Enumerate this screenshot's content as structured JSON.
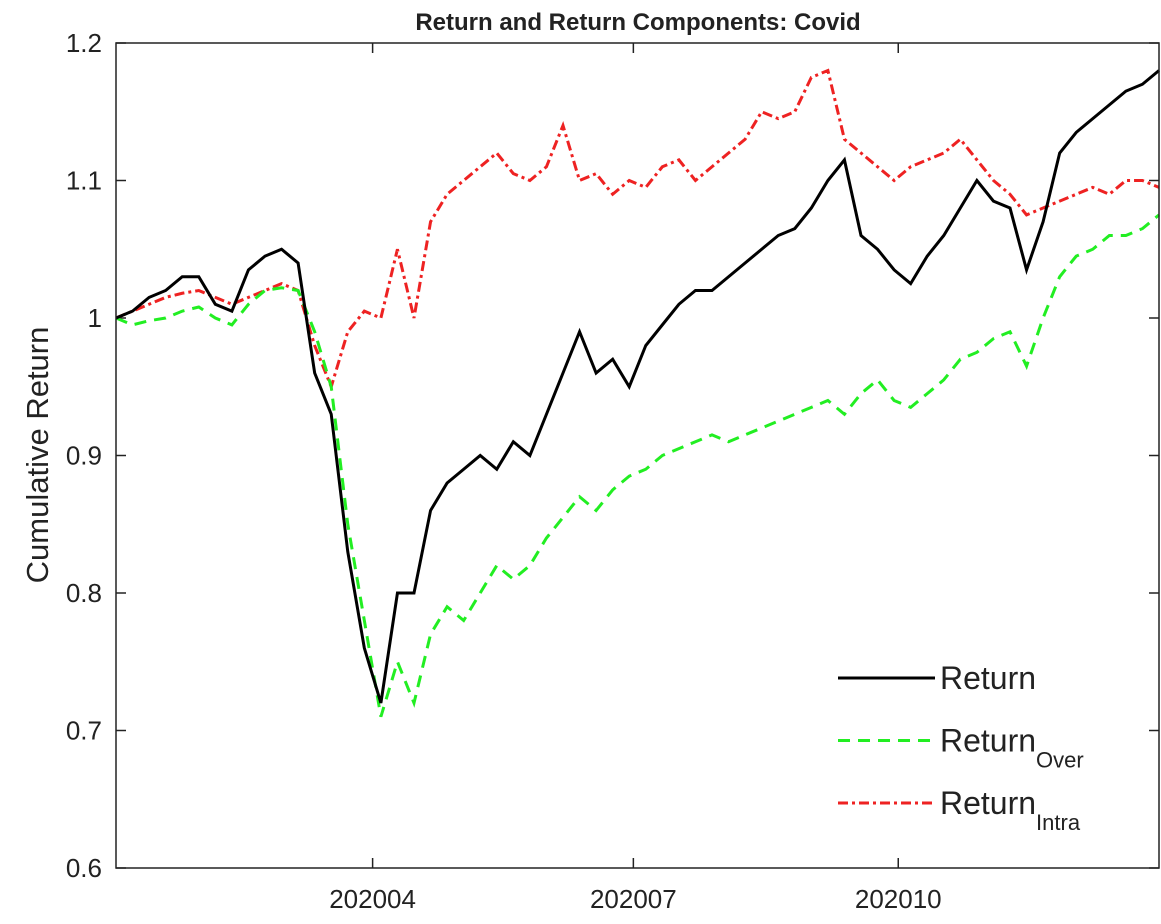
{
  "chart_data": {
    "type": "line",
    "title": "Return and Return Components: Covid",
    "y_label": "Cumulative Return",
    "x": [
      0,
      4,
      8,
      12,
      16,
      20,
      24,
      28,
      32,
      36,
      40,
      44,
      48,
      52,
      56,
      60,
      64,
      68,
      72,
      76,
      80,
      84,
      88,
      92,
      96,
      100,
      104,
      108,
      112,
      116,
      120,
      124,
      128,
      132,
      136,
      140,
      144,
      148,
      152,
      156,
      160,
      164,
      168,
      172,
      176,
      180,
      184,
      188,
      192,
      196,
      200,
      204,
      208,
      212,
      216,
      220,
      224,
      228,
      232,
      236,
      240,
      244,
      248,
      252
    ],
    "xlim": [
      0,
      252
    ],
    "xticks": [
      {
        "value": 62,
        "label": "202004"
      },
      {
        "value": 125,
        "label": "202007"
      },
      {
        "value": 189,
        "label": "202010"
      }
    ],
    "ylim": [
      0.6,
      1.2
    ],
    "yticks": [
      0.6,
      0.7,
      0.8,
      0.9,
      1,
      1.1,
      1.2
    ],
    "legend": "lower right",
    "series": [
      {
        "name": "Return",
        "color": "#000000",
        "style": "solid",
        "values": [
          1.0,
          1.005,
          1.015,
          1.02,
          1.03,
          1.03,
          1.01,
          1.005,
          1.035,
          1.045,
          1.05,
          1.04,
          0.96,
          0.93,
          0.83,
          0.76,
          0.72,
          0.8,
          0.8,
          0.86,
          0.88,
          0.89,
          0.9,
          0.89,
          0.91,
          0.9,
          0.93,
          0.96,
          0.99,
          0.96,
          0.97,
          0.95,
          0.98,
          0.995,
          1.01,
          1.02,
          1.02,
          1.03,
          1.04,
          1.05,
          1.06,
          1.065,
          1.08,
          1.1,
          1.115,
          1.06,
          1.05,
          1.035,
          1.025,
          1.045,
          1.06,
          1.08,
          1.1,
          1.085,
          1.08,
          1.035,
          1.07,
          1.12,
          1.135,
          1.145,
          1.155,
          1.165,
          1.17,
          1.18
        ]
      },
      {
        "name": "Return",
        "subscript": "Over",
        "color": "#22ee22",
        "style": "dashed",
        "values": [
          1.0,
          0.995,
          0.998,
          1.0,
          1.005,
          1.008,
          1.0,
          0.995,
          1.01,
          1.02,
          1.022,
          1.02,
          0.99,
          0.95,
          0.85,
          0.78,
          0.71,
          0.75,
          0.72,
          0.77,
          0.79,
          0.78,
          0.8,
          0.82,
          0.81,
          0.82,
          0.84,
          0.855,
          0.87,
          0.86,
          0.875,
          0.885,
          0.89,
          0.9,
          0.905,
          0.91,
          0.915,
          0.91,
          0.915,
          0.92,
          0.925,
          0.93,
          0.935,
          0.94,
          0.93,
          0.945,
          0.955,
          0.94,
          0.935,
          0.945,
          0.955,
          0.97,
          0.975,
          0.985,
          0.99,
          0.965,
          1.0,
          1.03,
          1.045,
          1.05,
          1.06,
          1.06,
          1.065,
          1.075
        ]
      },
      {
        "name": "Return",
        "subscript": "Intra",
        "color": "#ee2222",
        "style": "dashdot",
        "values": [
          1.0,
          1.005,
          1.01,
          1.015,
          1.018,
          1.02,
          1.015,
          1.01,
          1.015,
          1.02,
          1.025,
          1.02,
          0.98,
          0.95,
          0.99,
          1.005,
          1.0,
          1.05,
          1.0,
          1.07,
          1.09,
          1.1,
          1.11,
          1.12,
          1.105,
          1.1,
          1.11,
          1.14,
          1.1,
          1.105,
          1.09,
          1.1,
          1.095,
          1.11,
          1.115,
          1.1,
          1.11,
          1.12,
          1.13,
          1.15,
          1.145,
          1.15,
          1.175,
          1.18,
          1.13,
          1.12,
          1.11,
          1.1,
          1.11,
          1.115,
          1.12,
          1.13,
          1.115,
          1.1,
          1.09,
          1.075,
          1.08,
          1.085,
          1.09,
          1.095,
          1.09,
          1.1,
          1.1,
          1.095
        ]
      }
    ]
  }
}
